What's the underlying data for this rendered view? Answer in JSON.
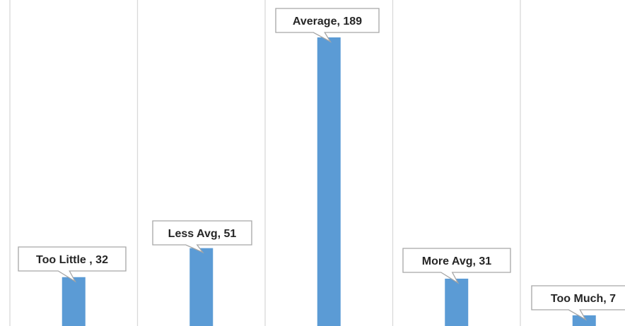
{
  "chart_data": {
    "type": "bar",
    "title": "",
    "xlabel": "",
    "ylabel": "",
    "categories": [
      "Too Little",
      "Less Avg",
      "Average",
      "More Avg",
      "Too Much"
    ],
    "values": [
      32,
      51,
      189,
      31,
      7
    ],
    "data_labels": [
      "Too Little , 32",
      "Less Avg, 51",
      "Average, 189",
      "More Avg, 31",
      "Too Much, 7"
    ],
    "ylim": [
      0,
      195
    ],
    "grid": true,
    "legend": "none",
    "bar_color": "#5b9bd5",
    "gridline_color": "#d9d9d9"
  }
}
